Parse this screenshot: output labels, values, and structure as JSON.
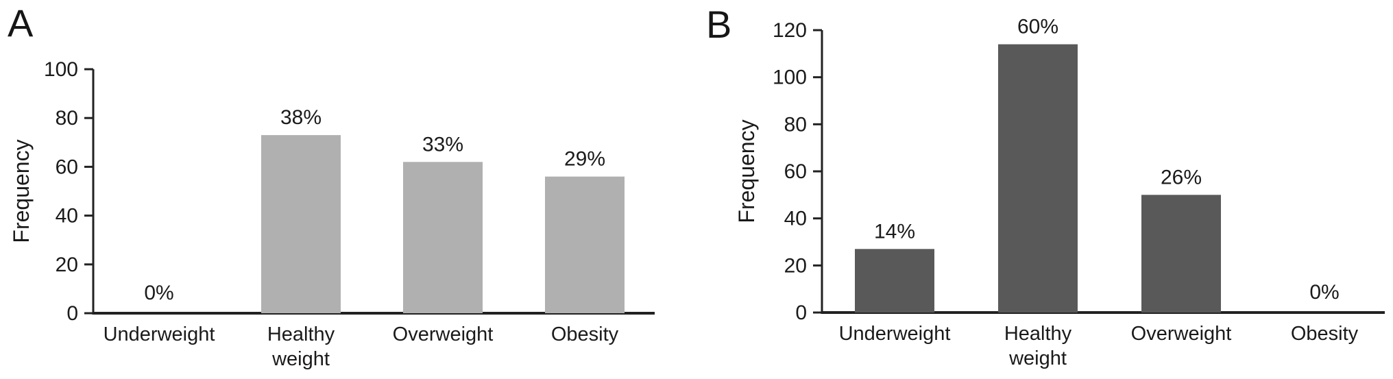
{
  "figure": {
    "background": "#ffffff",
    "text_color": "#1a1a1a",
    "axis_color": "#222222"
  },
  "chart_data": [
    {
      "type": "bar",
      "panel_label": "A",
      "ylabel": "Frequency",
      "xlabel": "",
      "ylim": [
        0,
        100
      ],
      "yticks": [
        0,
        20,
        40,
        60,
        80,
        100
      ],
      "categories": [
        "Underweight",
        "Healthy weight",
        "Overweight",
        "Obesity"
      ],
      "values": [
        0,
        73,
        62,
        56
      ],
      "bar_labels": [
        "0%",
        "38%",
        "33%",
        "29%"
      ],
      "bar_color": "#b0b0b0",
      "grid": false,
      "legend": "none"
    },
    {
      "type": "bar",
      "panel_label": "B",
      "ylabel": "Frequency",
      "xlabel": "",
      "ylim": [
        0,
        120
      ],
      "yticks": [
        0,
        20,
        40,
        60,
        80,
        100,
        120
      ],
      "categories": [
        "Underweight",
        "Healthy weight",
        "Overweight",
        "Obesity"
      ],
      "values": [
        27,
        114,
        50,
        0
      ],
      "bar_labels": [
        "14%",
        "60%",
        "26%",
        "0%"
      ],
      "bar_color": "#595959",
      "grid": false,
      "legend": "none"
    }
  ]
}
